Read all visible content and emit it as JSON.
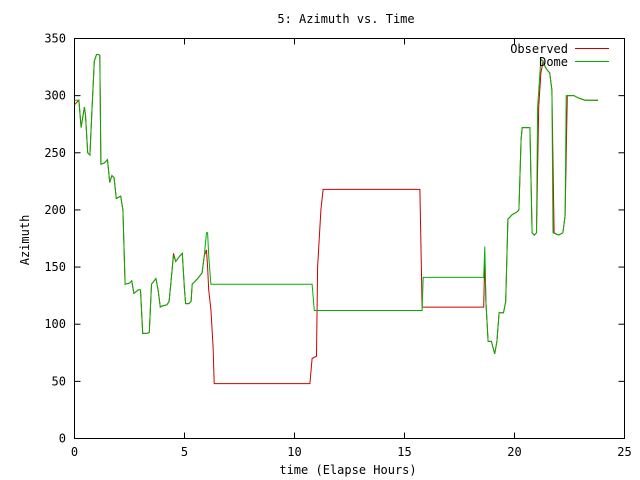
{
  "chart_data": {
    "type": "line",
    "title": "5: Azimuth vs. Time",
    "xlabel": "time (Elapse Hours)",
    "ylabel": "Azimuth",
    "xlim": [
      0,
      25
    ],
    "ylim": [
      0,
      350
    ],
    "xticks": [
      0,
      5,
      10,
      15,
      20,
      25
    ],
    "yticks": [
      0,
      50,
      100,
      150,
      200,
      250,
      300,
      350
    ],
    "grid": false,
    "legend_position": "top-right",
    "series": [
      {
        "name": "Observed",
        "color": "#cc0000",
        "points": [
          [
            0.0,
            292
          ],
          [
            0.2,
            296
          ],
          [
            0.3,
            272
          ],
          [
            0.45,
            290
          ],
          [
            0.5,
            283
          ],
          [
            0.6,
            250
          ],
          [
            0.7,
            248
          ],
          [
            0.8,
            290
          ],
          [
            0.9,
            330
          ],
          [
            1.0,
            336
          ],
          [
            1.1,
            336
          ],
          [
            1.15,
            335
          ],
          [
            1.2,
            240
          ],
          [
            1.35,
            241
          ],
          [
            1.5,
            244
          ],
          [
            1.6,
            224
          ],
          [
            1.7,
            230
          ],
          [
            1.8,
            228
          ],
          [
            1.9,
            210
          ],
          [
            2.1,
            212
          ],
          [
            2.2,
            200
          ],
          [
            2.3,
            135
          ],
          [
            2.5,
            136
          ],
          [
            2.6,
            138
          ],
          [
            2.7,
            127
          ],
          [
            2.9,
            130
          ],
          [
            3.0,
            130
          ],
          [
            3.1,
            92
          ],
          [
            3.3,
            92
          ],
          [
            3.4,
            93
          ],
          [
            3.5,
            135
          ],
          [
            3.7,
            140
          ],
          [
            3.8,
            130
          ],
          [
            3.9,
            115
          ],
          [
            4.0,
            116
          ],
          [
            4.2,
            117
          ],
          [
            4.3,
            120
          ],
          [
            4.4,
            140
          ],
          [
            4.5,
            162
          ],
          [
            4.6,
            155
          ],
          [
            4.8,
            160
          ],
          [
            4.9,
            162
          ],
          [
            5.0,
            130
          ],
          [
            5.05,
            118
          ],
          [
            5.2,
            118
          ],
          [
            5.3,
            120
          ],
          [
            5.35,
            135
          ],
          [
            5.6,
            140
          ],
          [
            5.8,
            145
          ],
          [
            5.9,
            160
          ],
          [
            6.0,
            165
          ],
          [
            6.05,
            150
          ],
          [
            6.1,
            130
          ],
          [
            6.2,
            113
          ],
          [
            6.3,
            80
          ],
          [
            6.35,
            48
          ],
          [
            10.7,
            48
          ],
          [
            10.8,
            70
          ],
          [
            11.0,
            72
          ],
          [
            11.05,
            150
          ],
          [
            11.2,
            200
          ],
          [
            11.3,
            218
          ],
          [
            15.7,
            218
          ],
          [
            15.8,
            115
          ],
          [
            18.6,
            115
          ],
          [
            18.65,
            160
          ],
          [
            18.7,
            120
          ],
          [
            18.8,
            85
          ],
          [
            18.95,
            85
          ],
          [
            19.1,
            74
          ],
          [
            19.2,
            85
          ],
          [
            19.3,
            110
          ],
          [
            19.5,
            110
          ],
          [
            19.6,
            120
          ],
          [
            19.7,
            192
          ],
          [
            19.9,
            196
          ],
          [
            20.1,
            198
          ],
          [
            20.2,
            200
          ],
          [
            20.3,
            262
          ],
          [
            20.35,
            272
          ],
          [
            20.7,
            272
          ],
          [
            20.8,
            180
          ],
          [
            20.9,
            178
          ],
          [
            21.0,
            180
          ],
          [
            21.1,
            290
          ],
          [
            21.2,
            320
          ],
          [
            21.3,
            330
          ],
          [
            21.4,
            325
          ],
          [
            21.5,
            322
          ],
          [
            21.6,
            320
          ],
          [
            21.7,
            305
          ],
          [
            21.8,
            180
          ],
          [
            22.0,
            178
          ],
          [
            22.2,
            180
          ],
          [
            22.3,
            195
          ],
          [
            22.4,
            300
          ],
          [
            22.7,
            300
          ],
          [
            22.9,
            298
          ],
          [
            23.2,
            296
          ],
          [
            23.8,
            296
          ]
        ]
      },
      {
        "name": "Dome",
        "color": "#00b000",
        "points": [
          [
            0.0,
            296
          ],
          [
            0.2,
            296
          ],
          [
            0.3,
            272
          ],
          [
            0.45,
            290
          ],
          [
            0.5,
            283
          ],
          [
            0.6,
            250
          ],
          [
            0.7,
            248
          ],
          [
            0.8,
            290
          ],
          [
            0.9,
            330
          ],
          [
            1.0,
            336
          ],
          [
            1.1,
            336
          ],
          [
            1.15,
            335
          ],
          [
            1.2,
            240
          ],
          [
            1.35,
            241
          ],
          [
            1.5,
            244
          ],
          [
            1.6,
            224
          ],
          [
            1.7,
            230
          ],
          [
            1.8,
            228
          ],
          [
            1.9,
            210
          ],
          [
            2.1,
            212
          ],
          [
            2.2,
            200
          ],
          [
            2.3,
            135
          ],
          [
            2.5,
            136
          ],
          [
            2.6,
            138
          ],
          [
            2.7,
            127
          ],
          [
            2.9,
            130
          ],
          [
            3.0,
            130
          ],
          [
            3.1,
            92
          ],
          [
            3.3,
            92
          ],
          [
            3.4,
            93
          ],
          [
            3.5,
            135
          ],
          [
            3.7,
            140
          ],
          [
            3.8,
            130
          ],
          [
            3.9,
            115
          ],
          [
            4.0,
            116
          ],
          [
            4.2,
            117
          ],
          [
            4.3,
            120
          ],
          [
            4.4,
            140
          ],
          [
            4.5,
            160
          ],
          [
            4.6,
            155
          ],
          [
            4.8,
            160
          ],
          [
            4.9,
            162
          ],
          [
            5.0,
            130
          ],
          [
            5.05,
            118
          ],
          [
            5.2,
            118
          ],
          [
            5.3,
            120
          ],
          [
            5.35,
            135
          ],
          [
            5.6,
            140
          ],
          [
            5.8,
            145
          ],
          [
            5.9,
            160
          ],
          [
            6.0,
            180
          ],
          [
            6.05,
            180
          ],
          [
            6.1,
            160
          ],
          [
            6.2,
            135
          ],
          [
            10.8,
            135
          ],
          [
            10.9,
            112
          ],
          [
            15.8,
            112
          ],
          [
            15.85,
            141
          ],
          [
            18.6,
            141
          ],
          [
            18.65,
            168
          ],
          [
            18.7,
            120
          ],
          [
            18.8,
            85
          ],
          [
            18.95,
            85
          ],
          [
            19.1,
            74
          ],
          [
            19.2,
            85
          ],
          [
            19.3,
            110
          ],
          [
            19.5,
            110
          ],
          [
            19.6,
            120
          ],
          [
            19.7,
            192
          ],
          [
            19.9,
            196
          ],
          [
            20.1,
            198
          ],
          [
            20.2,
            200
          ],
          [
            20.3,
            262
          ],
          [
            20.35,
            272
          ],
          [
            20.7,
            272
          ],
          [
            20.8,
            180
          ],
          [
            20.9,
            178
          ],
          [
            21.0,
            180
          ],
          [
            21.05,
            290
          ],
          [
            21.2,
            332
          ],
          [
            21.3,
            330
          ],
          [
            21.4,
            325
          ],
          [
            21.5,
            322
          ],
          [
            21.6,
            320
          ],
          [
            21.7,
            305
          ],
          [
            21.75,
            180
          ],
          [
            22.0,
            178
          ],
          [
            22.2,
            180
          ],
          [
            22.3,
            195
          ],
          [
            22.35,
            300
          ],
          [
            22.7,
            300
          ],
          [
            22.9,
            298
          ],
          [
            23.2,
            296
          ],
          [
            23.8,
            296
          ]
        ]
      }
    ]
  }
}
